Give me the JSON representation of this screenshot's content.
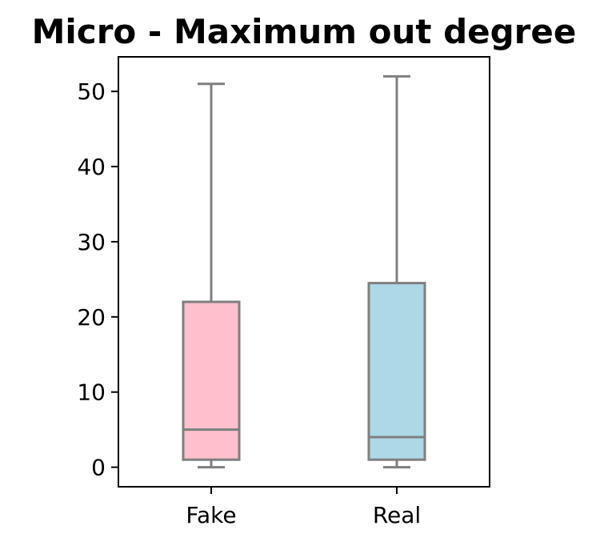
{
  "chart_data": {
    "type": "box",
    "title": "Micro - Maximum out degree",
    "xlabel": "",
    "ylabel": "",
    "categories": [
      "Fake",
      "Real"
    ],
    "boxes": [
      {
        "category": "Fake",
        "whisker_low": 0,
        "q1": 1,
        "median": 5,
        "q3": 22,
        "whisker_high": 51,
        "fill": "#FFC0CB"
      },
      {
        "category": "Real",
        "whisker_low": 0,
        "q1": 1,
        "median": 4,
        "q3": 24.5,
        "whisker_high": 52,
        "fill": "#ADD8E6"
      }
    ],
    "ylim": [
      -2.6,
      54.6
    ],
    "yticks": [
      0,
      10,
      20,
      30,
      40,
      50
    ],
    "grid": false,
    "legend": "none",
    "colors": {
      "box_line": "#7F7F7F",
      "axis": "#000000"
    }
  }
}
